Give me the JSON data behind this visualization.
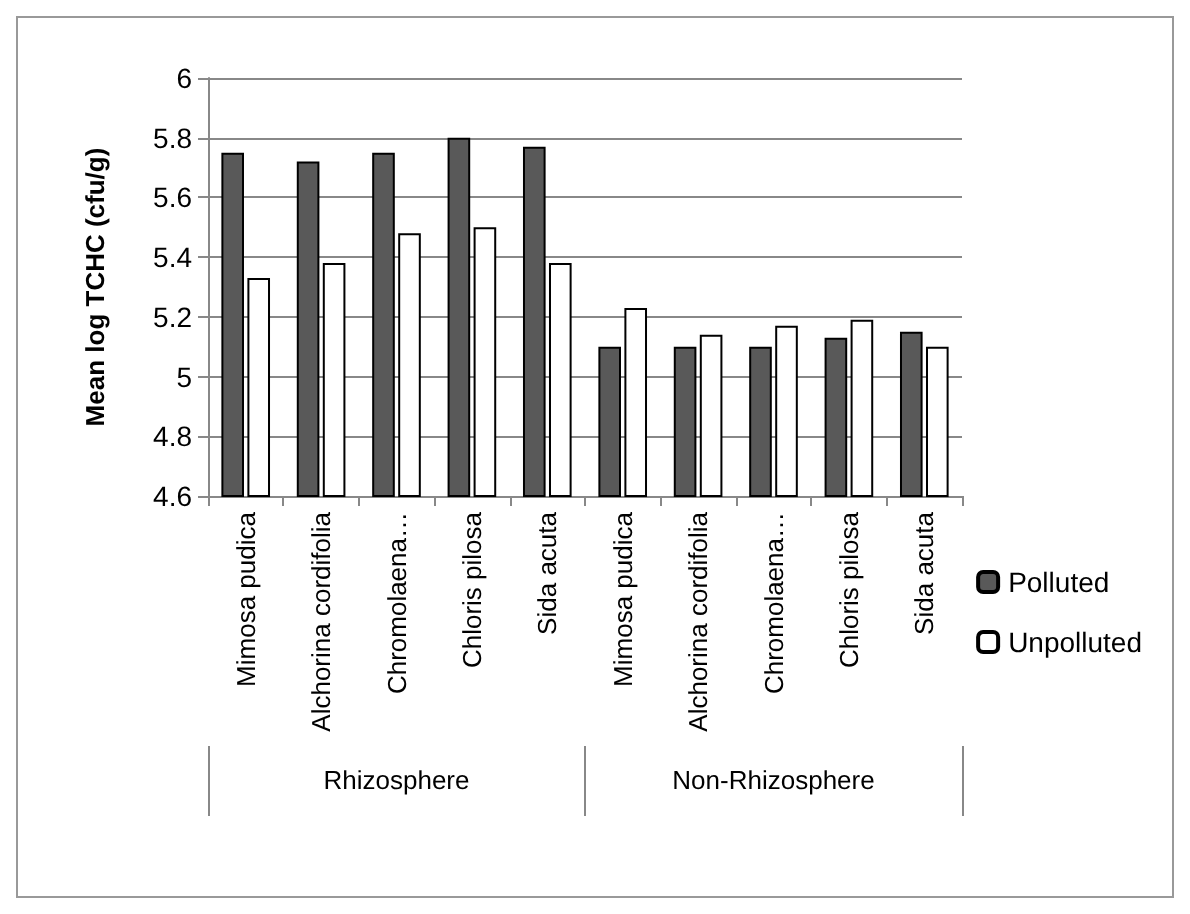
{
  "chart_data": {
    "type": "bar",
    "ylabel": "Mean log TCHC (cfu/g)",
    "categories": [
      "Mimosa pudica",
      "Alchorina cordifolia",
      "Chromolaena…",
      "Chloris pilosa",
      "Sida acuta",
      "Mimosa pudica",
      "Alchorina cordifolia",
      "Chromolaena…",
      "Chloris pilosa",
      "Sida acuta"
    ],
    "annotations": [
      "Rhizosphere",
      "Non-Rhizosphere"
    ],
    "series": [
      {
        "name": "Polluted",
        "color": "#595959",
        "values": [
          5.75,
          5.72,
          5.75,
          5.8,
          5.77,
          5.1,
          5.1,
          5.1,
          5.13,
          5.15
        ]
      },
      {
        "name": "Unpolluted",
        "color": "#ffffff",
        "values": [
          5.33,
          5.38,
          5.48,
          5.5,
          5.38,
          5.23,
          5.14,
          5.17,
          5.19,
          5.1
        ]
      }
    ],
    "ylim": [
      4.6,
      6
    ],
    "yticks": [
      4.6,
      4.8,
      5,
      5.2,
      5.4,
      5.6,
      5.8,
      6
    ],
    "grid": "y",
    "legend": "right"
  }
}
